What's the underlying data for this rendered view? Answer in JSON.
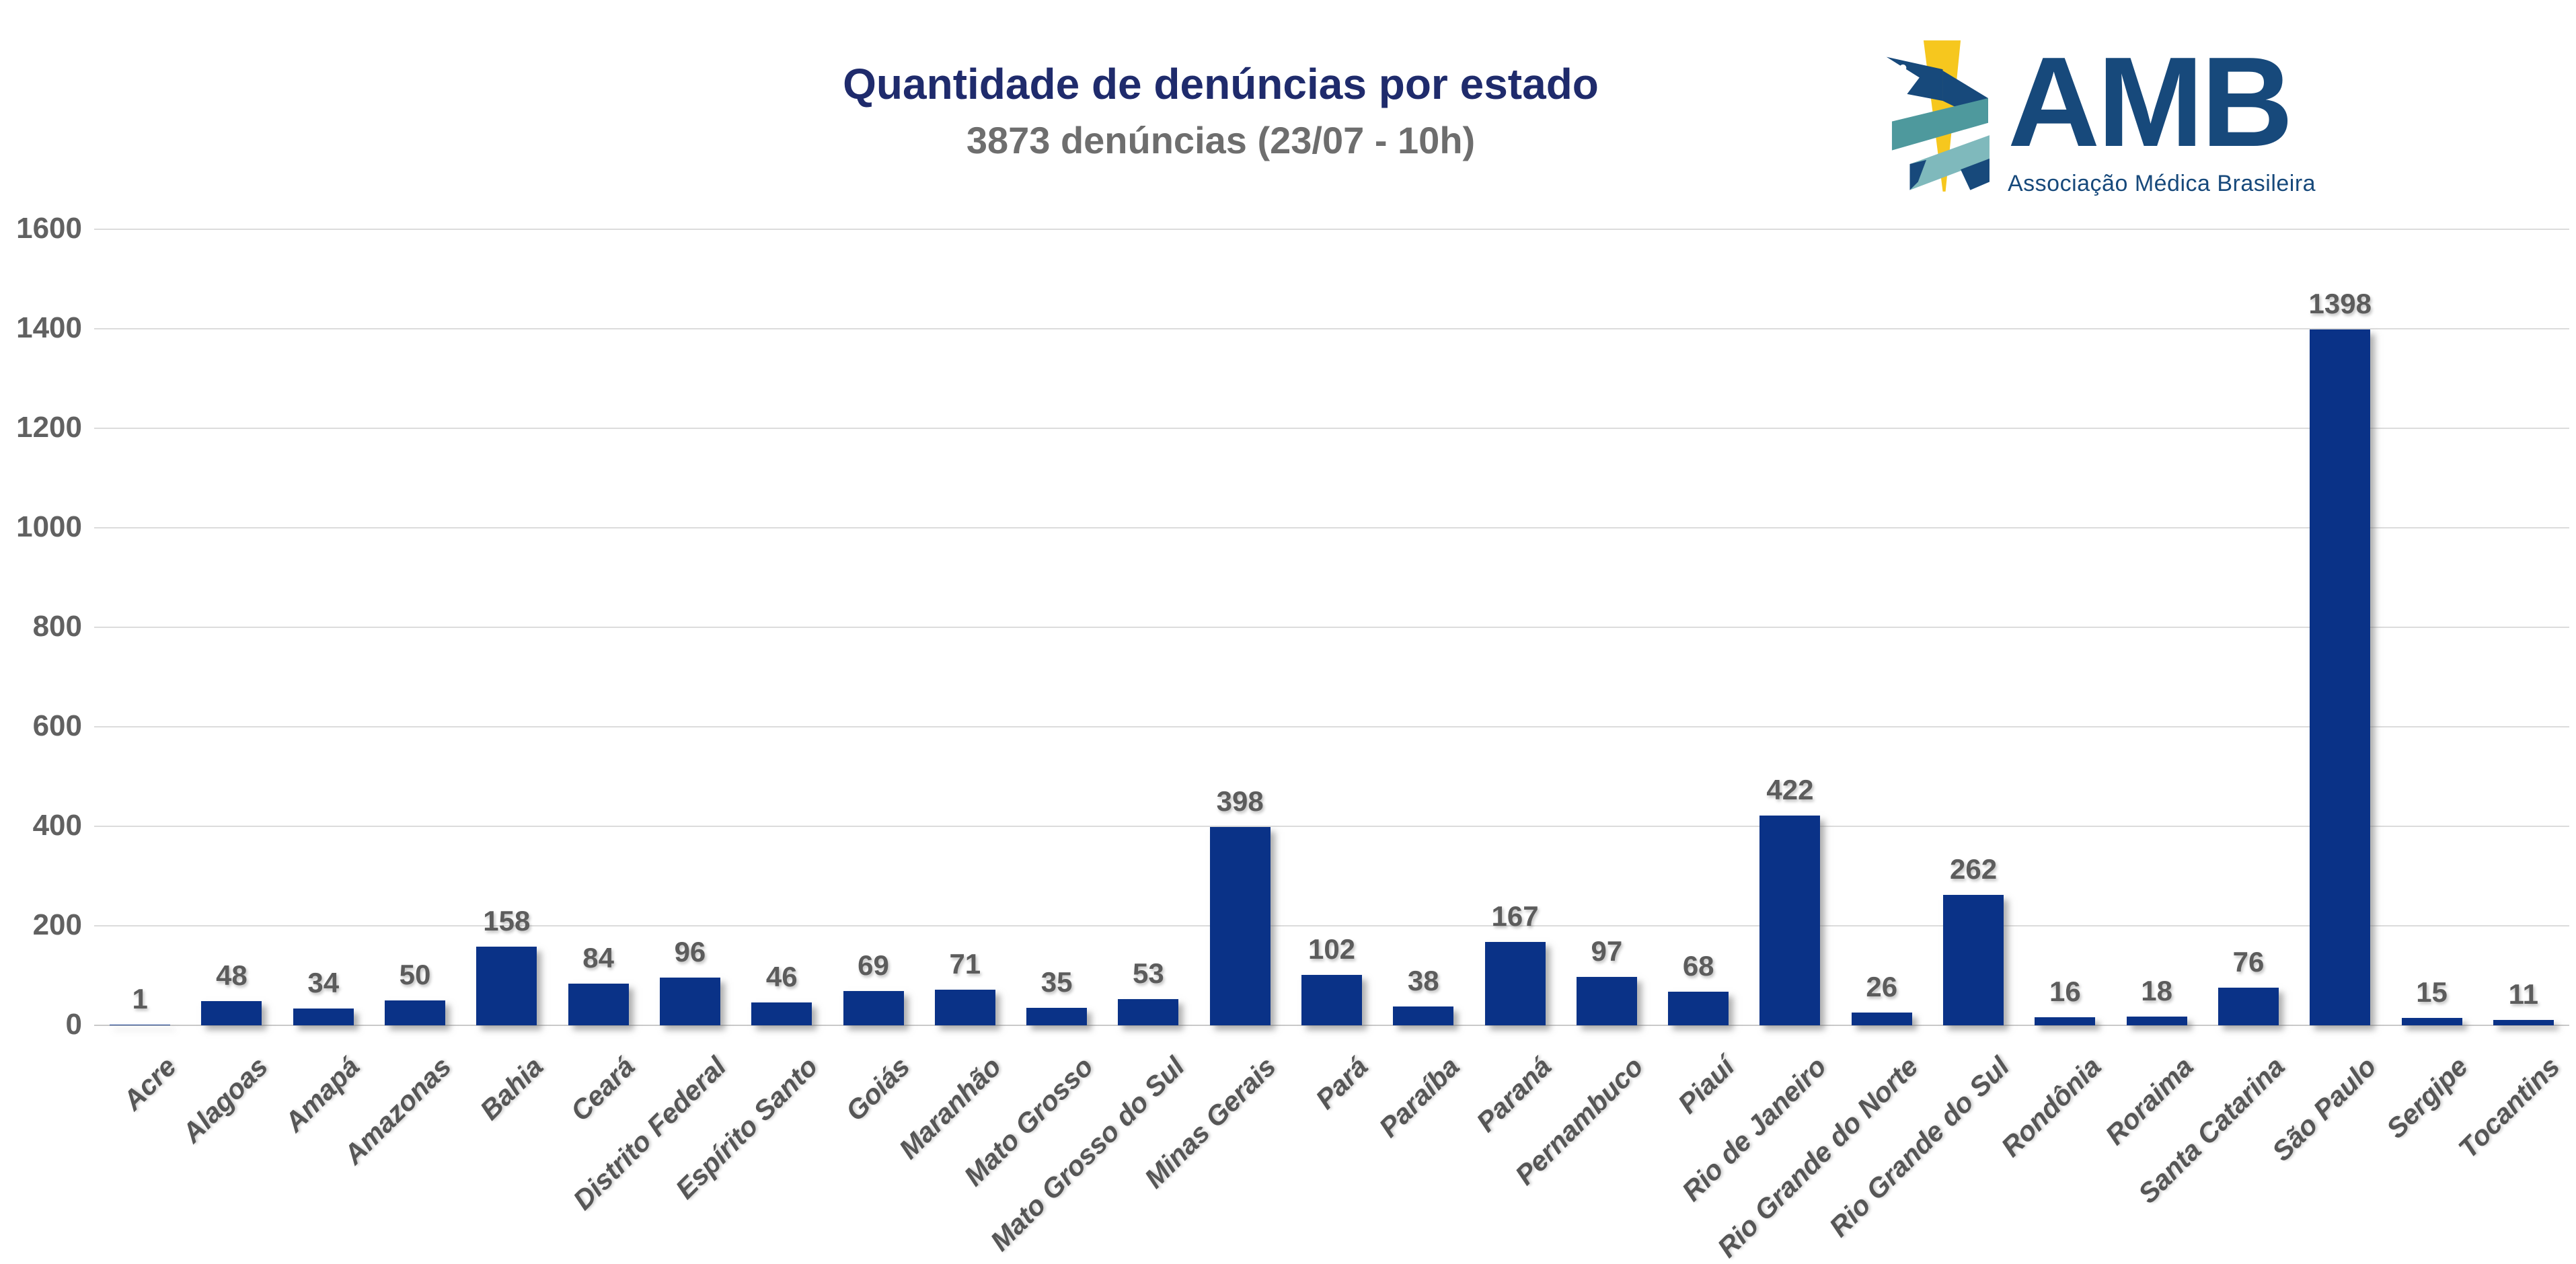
{
  "header": {
    "title": "Quantidade de denúncias por estado",
    "subtitle": "3873 denúncias (23/07 - 10h)"
  },
  "logo": {
    "text": "AMB",
    "tagline": "Associação Médica Brasileira",
    "icon": "caduceus-ribbon-icon",
    "colors": {
      "navy": "#17497B",
      "teal_dark": "#4E999D",
      "teal_light": "#7FB9BC",
      "yellow": "#F6C71E"
    }
  },
  "chart_data": {
    "type": "bar",
    "title": "Quantidade de denúncias por estado",
    "subtitle": "3873 denúncias (23/07 - 10h)",
    "categories": [
      "Acre",
      "Alagoas",
      "Amapá",
      "Amazonas",
      "Bahia",
      "Ceará",
      "Distrito Federal",
      "Espírito Santo",
      "Goiás",
      "Maranhão",
      "Mato Grosso",
      "Mato Grosso do Sul",
      "Minas Gerais",
      "Pará",
      "Paraíba",
      "Paraná",
      "Pernambuco",
      "Piauí",
      "Rio de Janeiro",
      "Rio Grande do Norte",
      "Rio Grande do Sul",
      "Rondônia",
      "Roraima",
      "Santa Catarina",
      "São Paulo",
      "Sergipe",
      "Tocantins"
    ],
    "values": [
      1,
      48,
      34,
      50,
      158,
      84,
      96,
      46,
      69,
      71,
      35,
      53,
      398,
      102,
      38,
      167,
      97,
      68,
      422,
      26,
      262,
      16,
      18,
      76,
      1398,
      15,
      11
    ],
    "xlabel": "",
    "ylabel": "",
    "ylim": [
      0,
      1600
    ],
    "ytick_step": 200,
    "grid": true,
    "legend": false,
    "bar_color": "#0A3287",
    "value_label_color": "#5C5C5C",
    "tick_label_color": "#616161",
    "title_color": "#1F2B6C",
    "subtitle_color": "#6E6E6E"
  }
}
